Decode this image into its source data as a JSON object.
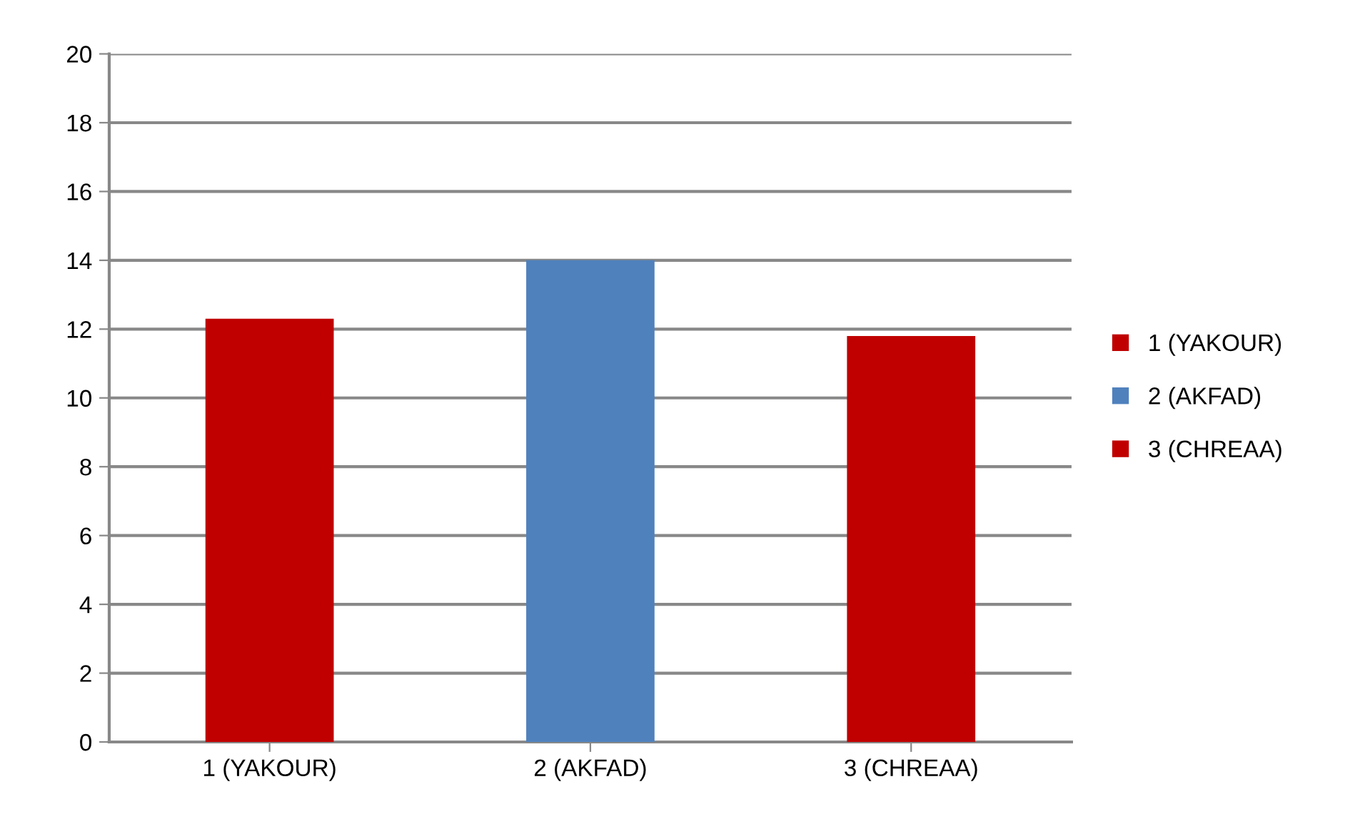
{
  "chart_data": {
    "type": "bar",
    "categories": [
      "1 (YAKOUR)",
      "2 (AKFAD)",
      "3 (CHREAA)"
    ],
    "series": [
      {
        "name": "1 (YAKOUR)",
        "color": "#c00000",
        "values": [
          12.3,
          null,
          null
        ]
      },
      {
        "name": "2 (AKFAD)",
        "color": "#4f81bd",
        "values": [
          null,
          14.0,
          null
        ]
      },
      {
        "name": "3 (CHREAA)",
        "color": "#c00000",
        "values": [
          null,
          null,
          11.8
        ]
      }
    ],
    "ylim": [
      0,
      20
    ],
    "yticks": [
      0,
      2,
      4,
      6,
      8,
      10,
      12,
      14,
      16,
      18,
      20
    ],
    "grid": "y",
    "legend": "right"
  }
}
